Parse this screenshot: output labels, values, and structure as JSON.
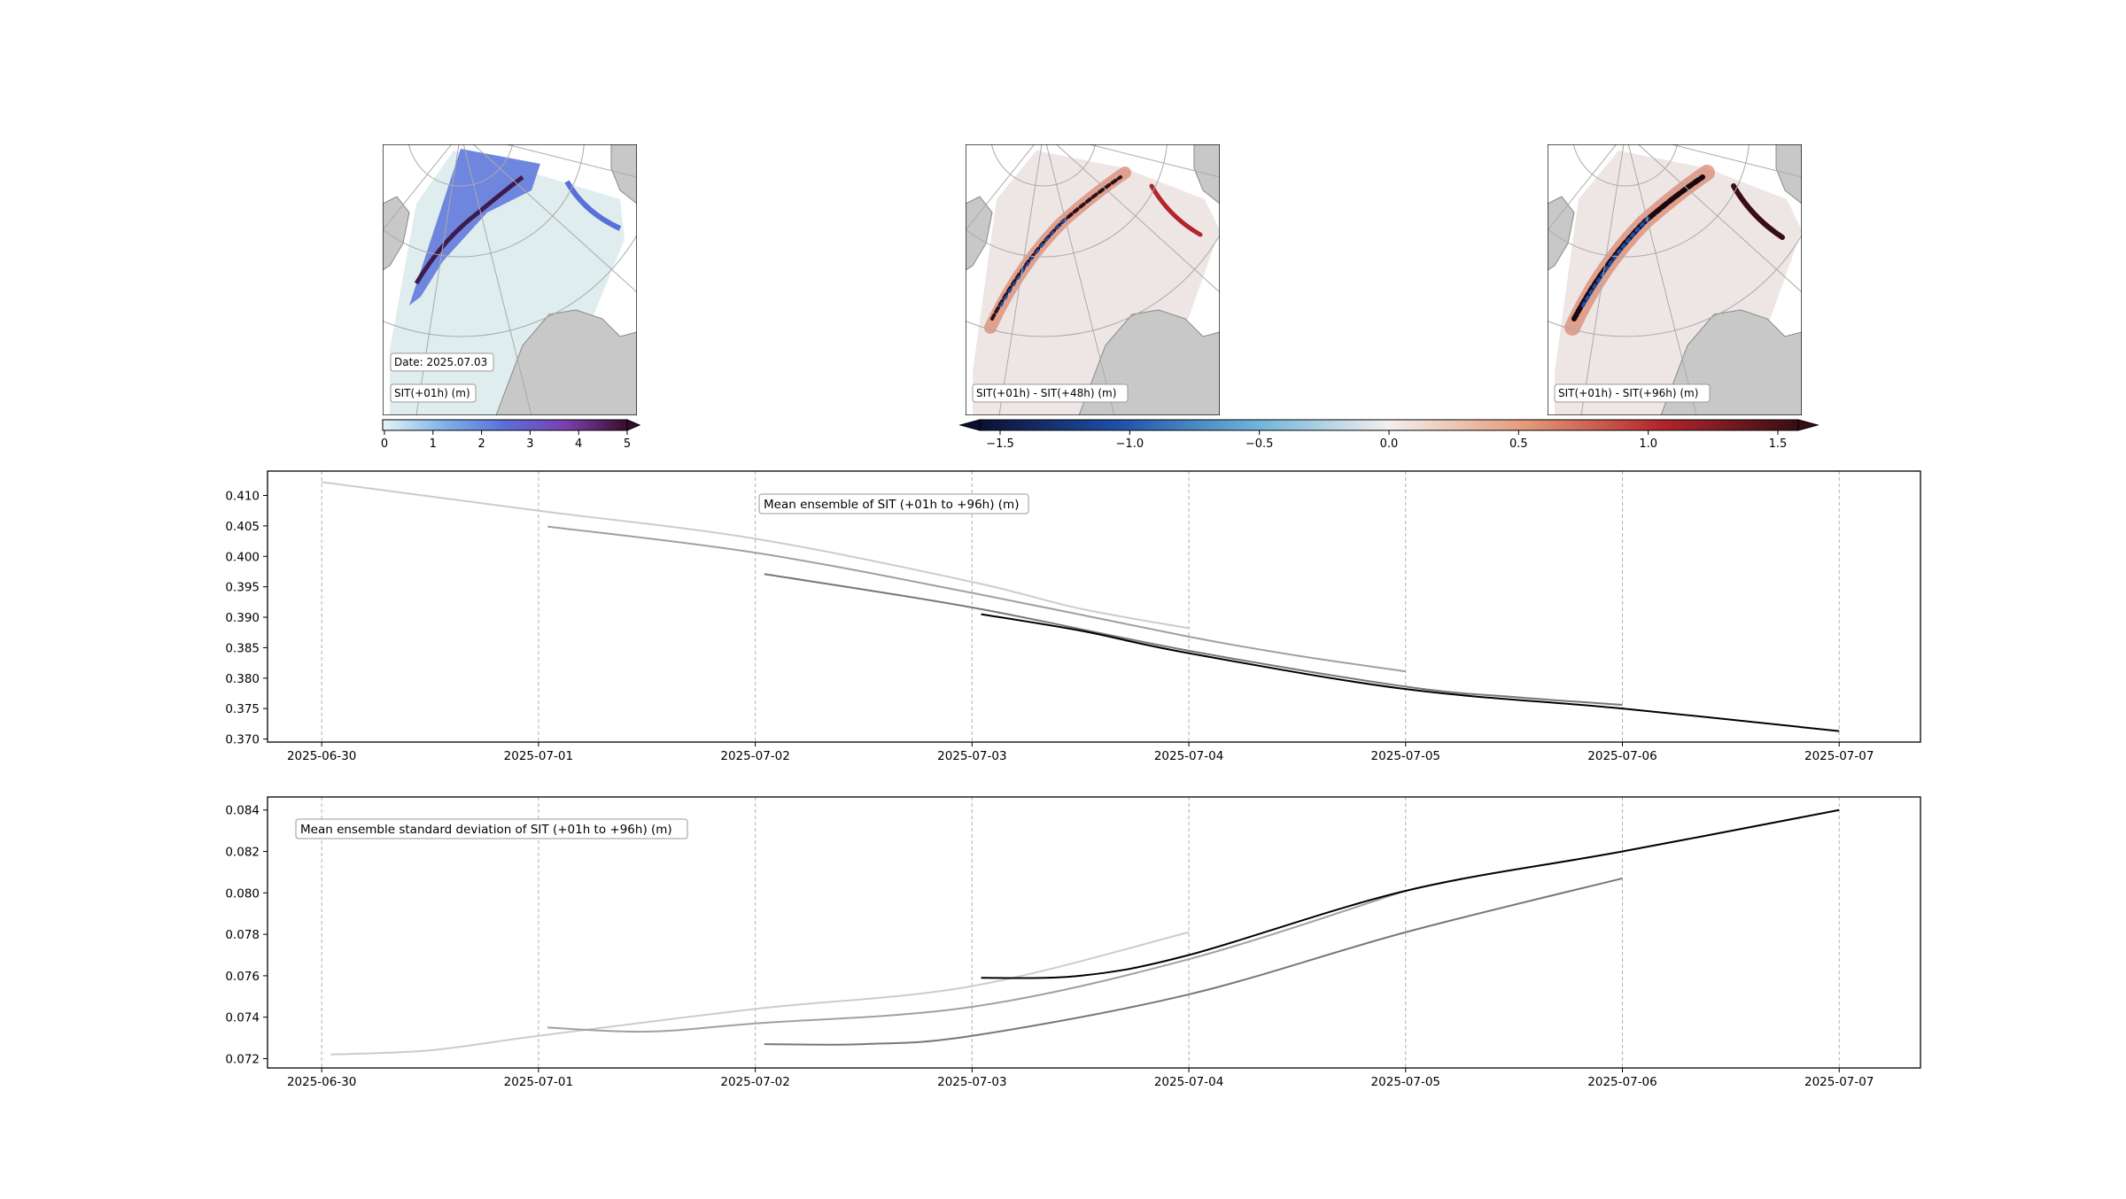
{
  "maps": [
    {
      "label": "SIT(+01h) (m)",
      "date_label": "Date: 2025.07.03"
    },
    {
      "label": "SIT(+01h) - SIT(+48h) (m)"
    },
    {
      "label": "SIT(+01h) - SIT(+96h) (m)"
    }
  ],
  "colorbars": [
    {
      "ticks": [
        "0",
        "1",
        "2",
        "3",
        "4",
        "5"
      ],
      "range": [
        0,
        5
      ],
      "colors": [
        "#e6f3f5",
        "#7fb3e8",
        "#5a6fd8",
        "#7b3fae",
        "#3a0d2e"
      ]
    },
    {
      "ticks": [
        "−1.5",
        "−1.0",
        "−0.5",
        "0.0",
        "0.5",
        "1.0",
        "1.5"
      ],
      "range": [
        -1.5,
        1.5
      ],
      "colors": [
        "#0b1033",
        "#1e4fa8",
        "#6ab2d8",
        "#f3efee",
        "#e59a78",
        "#b3252b",
        "#3a0d14"
      ]
    }
  ],
  "chart_data": [
    {
      "type": "line",
      "title": "Mean ensemble of SIT (+01h to +96h) (m)",
      "x_ticks": [
        "2025-06-30",
        "2025-07-01",
        "2025-07-02",
        "2025-07-03",
        "2025-07-04",
        "2025-07-05",
        "2025-07-06",
        "2025-07-07"
      ],
      "y_ticks": [
        "0.410",
        "0.405",
        "0.400",
        "0.395",
        "0.390",
        "0.385",
        "0.380",
        "0.375",
        "0.370"
      ],
      "ylim": [
        0.3695,
        0.414
      ],
      "xlim": [
        "2025-06-29 18:00",
        "2025-07-07 09:00"
      ],
      "grid": "x dashed",
      "series": [
        {
          "color": "#cccccc",
          "x": [
            "2025-06-30 00:00",
            "2025-07-01 00:00",
            "2025-07-02 00:00",
            "2025-07-03 00:00",
            "2025-07-03 12:00",
            "2025-07-04 00:00"
          ],
          "values": [
            0.4122,
            0.4075,
            0.4029,
            0.3958,
            0.3914,
            0.3882
          ]
        },
        {
          "color": "#a0a0a0",
          "x": [
            "2025-07-01 01:00",
            "2025-07-02 00:00",
            "2025-07-03 00:00",
            "2025-07-04 00:00",
            "2025-07-04 12:00",
            "2025-07-05 00:00"
          ],
          "values": [
            0.4049,
            0.4006,
            0.394,
            0.3868,
            0.3837,
            0.3811
          ]
        },
        {
          "color": "#777777",
          "x": [
            "2025-07-02 01:00",
            "2025-07-03 00:00",
            "2025-07-04 00:00",
            "2025-07-05 00:00",
            "2025-07-05 12:00",
            "2025-07-06 00:00"
          ],
          "values": [
            0.3971,
            0.3916,
            0.3845,
            0.3786,
            0.3769,
            0.3756
          ]
        },
        {
          "color": "#000000",
          "x": [
            "2025-07-03 01:00",
            "2025-07-03 12:00",
            "2025-07-04 00:00",
            "2025-07-05 00:00",
            "2025-07-06 00:00",
            "2025-07-07 00:00"
          ],
          "values": [
            0.3905,
            0.3878,
            0.3841,
            0.3782,
            0.375,
            0.3713
          ]
        }
      ]
    },
    {
      "type": "line",
      "title": "Mean ensemble standard deviation of SIT (+01h to +96h) (m)",
      "x_ticks": [
        "2025-06-30",
        "2025-07-01",
        "2025-07-02",
        "2025-07-03",
        "2025-07-04",
        "2025-07-05",
        "2025-07-06",
        "2025-07-07"
      ],
      "y_ticks": [
        "0.084",
        "0.082",
        "0.080",
        "0.078",
        "0.076",
        "0.074",
        "0.072"
      ],
      "ylim": [
        0.07155,
        0.08463
      ],
      "xlim": [
        "2025-06-29 18:00",
        "2025-07-07 09:00"
      ],
      "grid": "x dashed",
      "series": [
        {
          "color": "#cccccc",
          "x": [
            "2025-06-30 01:00",
            "2025-06-30 12:00",
            "2025-07-01 00:00",
            "2025-07-02 00:00",
            "2025-07-03 00:00",
            "2025-07-04 00:00"
          ],
          "values": [
            0.0722,
            0.0724,
            0.0731,
            0.0744,
            0.0755,
            0.0781
          ]
        },
        {
          "color": "#a0a0a0",
          "x": [
            "2025-07-01 01:00",
            "2025-07-01 12:00",
            "2025-07-02 00:00",
            "2025-07-03 00:00",
            "2025-07-04 00:00",
            "2025-07-05 00:00"
          ],
          "values": [
            0.0735,
            0.0733,
            0.0737,
            0.0745,
            0.0768,
            0.0801
          ]
        },
        {
          "color": "#777777",
          "x": [
            "2025-07-02 01:00",
            "2025-07-02 12:00",
            "2025-07-03 00:00",
            "2025-07-04 00:00",
            "2025-07-05 00:00",
            "2025-07-06 00:00"
          ],
          "values": [
            0.0727,
            0.0727,
            0.0731,
            0.0751,
            0.0781,
            0.0807
          ]
        },
        {
          "color": "#000000",
          "x": [
            "2025-07-03 01:00",
            "2025-07-03 12:00",
            "2025-07-04 00:00",
            "2025-07-05 00:00",
            "2025-07-06 00:00",
            "2025-07-07 00:00"
          ],
          "values": [
            0.0759,
            0.076,
            0.077,
            0.0801,
            0.082,
            0.084
          ]
        }
      ]
    }
  ]
}
